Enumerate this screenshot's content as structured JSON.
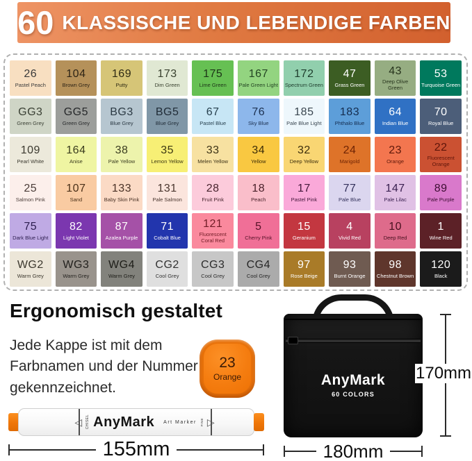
{
  "banner": {
    "number": "60",
    "title": "KLASSISCHE UND LEBENDIGE FARBEN"
  },
  "palette": {
    "swatches": [
      {
        "code": "26",
        "name": "Pastel Peach",
        "bg": "#f8dfc1",
        "fg": "#3a3a3a"
      },
      {
        "code": "104",
        "name": "Brown Grey",
        "bg": "#b5915a",
        "fg": "#2e2416"
      },
      {
        "code": "169",
        "name": "Putty",
        "bg": "#d6c577",
        "fg": "#2e2a14"
      },
      {
        "code": "173",
        "name": "Dim Green",
        "bg": "#e0e8d3",
        "fg": "#38402e"
      },
      {
        "code": "175",
        "name": "Lime Green",
        "bg": "#66c053",
        "fg": "#1c3317"
      },
      {
        "code": "167",
        "name": "Pale Green Light",
        "bg": "#93d480",
        "fg": "#234422"
      },
      {
        "code": "172",
        "name": "Spectrum Green",
        "bg": "#91cfad",
        "fg": "#1d3c2c"
      },
      {
        "code": "47",
        "name": "Grass Green",
        "bg": "#3c5d23",
        "fg": "#ffffff"
      },
      {
        "code": "43",
        "name": "Deep Olive Green",
        "bg": "#96ad82",
        "fg": "#26331c"
      },
      {
        "code": "53",
        "name": "Turquoise Green",
        "bg": "#00795d",
        "fg": "#ffffff"
      },
      {
        "code": "GG3",
        "name": "Green Grey",
        "bg": "#cfd5c6",
        "fg": "#3a4034"
      },
      {
        "code": "GG5",
        "name": "Green Grey",
        "bg": "#9c9e9b",
        "fg": "#26282a"
      },
      {
        "code": "BG3",
        "name": "Blue Grey",
        "bg": "#b6c6d0",
        "fg": "#2c3a44"
      },
      {
        "code": "BG5",
        "name": "Blue Grey",
        "bg": "#8097a7",
        "fg": "#1f2b36"
      },
      {
        "code": "67",
        "name": "Pastel Blue",
        "bg": "#c7e6f5",
        "fg": "#27404e"
      },
      {
        "code": "76",
        "name": "Sky Blue",
        "bg": "#8db7eb",
        "fg": "#1c3050"
      },
      {
        "code": "185",
        "name": "Pale Blue Light",
        "bg": "#eef7fc",
        "fg": "#3a4650"
      },
      {
        "code": "183",
        "name": "Phthalo Blue",
        "bg": "#5d9ed9",
        "fg": "#142c4e"
      },
      {
        "code": "64",
        "name": "Indian Blue",
        "bg": "#3071c4",
        "fg": "#ffffff"
      },
      {
        "code": "70",
        "name": "Royal Blue",
        "bg": "#4c5e79",
        "fg": "#ffffff"
      },
      {
        "code": "109",
        "name": "Pearl White",
        "bg": "#ece9db",
        "fg": "#3c3a30"
      },
      {
        "code": "164",
        "name": "Anise",
        "bg": "#eff5a2",
        "fg": "#3a3c1e"
      },
      {
        "code": "38",
        "name": "Pale Yellow",
        "bg": "#edf3ac",
        "fg": "#3a3c20"
      },
      {
        "code": "35",
        "name": "Lemon Yellow",
        "bg": "#f7ef75",
        "fg": "#3c3812"
      },
      {
        "code": "33",
        "name": "Melen Yellow",
        "bg": "#f7e1a1",
        "fg": "#3c3216"
      },
      {
        "code": "34",
        "name": "Yellow",
        "bg": "#f9c841",
        "fg": "#3c2c08"
      },
      {
        "code": "32",
        "name": "Deep Yellow",
        "bg": "#f9d673",
        "fg": "#3c2e0c"
      },
      {
        "code": "24",
        "name": "Marigold",
        "bg": "#de7329",
        "fg": "#6e2404"
      },
      {
        "code": "23",
        "name": "Orange",
        "bg": "#f3764f",
        "fg": "#5e180a"
      },
      {
        "code": "22",
        "name": "Fluorescent Orange",
        "bg": "#cb5132",
        "fg": "#5e150a"
      },
      {
        "code": "25",
        "name": "Salmon Pink",
        "bg": "#fcefeb",
        "fg": "#4a3c38"
      },
      {
        "code": "107",
        "name": "Sand",
        "bg": "#f9cba2",
        "fg": "#4a3018"
      },
      {
        "code": "133",
        "name": "Baby Skin Pink",
        "bg": "#fbdac5",
        "fg": "#4a3226"
      },
      {
        "code": "131",
        "name": "Pale Salmon",
        "bg": "#fbe5dd",
        "fg": "#4a362e"
      },
      {
        "code": "28",
        "name": "Fruit Pink",
        "bg": "#fccbdb",
        "fg": "#48242e"
      },
      {
        "code": "18",
        "name": "Peach",
        "bg": "#fabeca",
        "fg": "#481f28"
      },
      {
        "code": "17",
        "name": "Pastel Pink",
        "bg": "#faa9d9",
        "fg": "#42173a"
      },
      {
        "code": "77",
        "name": "Pale Blue",
        "bg": "#dbd6ef",
        "fg": "#32305a"
      },
      {
        "code": "147",
        "name": "Pale Lilac",
        "bg": "#e0c1e5",
        "fg": "#3a2050"
      },
      {
        "code": "89",
        "name": "Pale Purple",
        "bg": "#d979cb",
        "fg": "#3c0d32"
      },
      {
        "code": "75",
        "name": "Dark Blue Light",
        "bg": "#bfaae4",
        "fg": "#2c1d4e"
      },
      {
        "code": "82",
        "name": "Light Violet",
        "bg": "#7b37af",
        "fg": "#ffffff"
      },
      {
        "code": "87",
        "name": "Azalea Purple",
        "bg": "#a551a7",
        "fg": "#ffffff"
      },
      {
        "code": "71",
        "name": "Cobalt Blue",
        "bg": "#2235ad",
        "fg": "#ffffff"
      },
      {
        "code": "121",
        "name": "Fluorescent Coral Red",
        "bg": "#fa899d",
        "fg": "#701c26"
      },
      {
        "code": "5",
        "name": "Cherry Pink",
        "bg": "#f06f97",
        "fg": "#561228"
      },
      {
        "code": "15",
        "name": "Geranium",
        "bg": "#c33740",
        "fg": "#ffffff"
      },
      {
        "code": "4",
        "name": "Vivid Red",
        "bg": "#b84160",
        "fg": "#ffffff"
      },
      {
        "code": "10",
        "name": "Deep Red",
        "bg": "#de6b8b",
        "fg": "#46101e"
      },
      {
        "code": "1",
        "name": "Wine Red",
        "bg": "#5c2127",
        "fg": "#ffffff"
      },
      {
        "code": "WG2",
        "name": "Warm Grey",
        "bg": "#ece6d8",
        "fg": "#3c382e"
      },
      {
        "code": "WG3",
        "name": "Warm Grey",
        "bg": "#99938c",
        "fg": "#211f1c"
      },
      {
        "code": "WG4",
        "name": "Warm Grey",
        "bg": "#82827c",
        "fg": "#1d1d18"
      },
      {
        "code": "CG2",
        "name": "Cool Grey",
        "bg": "#dfdfdf",
        "fg": "#323232"
      },
      {
        "code": "CG3",
        "name": "Cool Grey",
        "bg": "#c7c7c7",
        "fg": "#2c2c2c"
      },
      {
        "code": "CG4",
        "name": "Cool Grey",
        "bg": "#ababab",
        "fg": "#262626"
      },
      {
        "code": "97",
        "name": "Rose Beige",
        "bg": "#a97b28",
        "fg": "#ffffff"
      },
      {
        "code": "93",
        "name": "Burnt Orange",
        "bg": "#6f5b51",
        "fg": "#ffffff"
      },
      {
        "code": "98",
        "name": "Chestnut Brown",
        "bg": "#5f362c",
        "fg": "#ffffff"
      },
      {
        "code": "120",
        "name": "Black",
        "bg": "#1b1b1b",
        "fg": "#ffffff"
      }
    ]
  },
  "ergonomic": {
    "heading": "Ergonomisch gestaltet",
    "body": "Jede Kappe ist mit dem Farbnamen und der Nummer gekennzeichnet."
  },
  "cap": {
    "code": "23",
    "name": "Orange",
    "color": "#f57d10"
  },
  "marker": {
    "brand": "AnyMark",
    "subtitle": "Art Marker",
    "left_tip_label": "CHISEL",
    "right_tip_label": "FINE",
    "left_triangle_icon": "◁",
    "right_triangle_icon": "▷",
    "length_label": "155mm"
  },
  "bag": {
    "brand": "AnyMark",
    "subtitle": "60 COLORS",
    "height_label": "170mm",
    "width_label": "180mm"
  }
}
